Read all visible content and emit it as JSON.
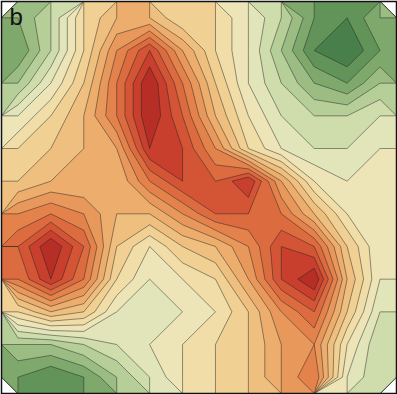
{
  "chart_data": {
    "type": "contour",
    "title": "b",
    "tick_labels": false,
    "values": [
      [
        2,
        3,
        5,
        6,
        6,
        5,
        5,
        4,
        3,
        1.5,
        1,
        2
      ],
      [
        1.5,
        3,
        5,
        7,
        8.5,
        6.5,
        5,
        4,
        2.5,
        1,
        0.5,
        1.5
      ],
      [
        2.5,
        4,
        5.5,
        7.5,
        9.5,
        7.5,
        5.5,
        4,
        3,
        2,
        1.5,
        2.5
      ],
      [
        4,
        5,
        6,
        7.5,
        9.5,
        8,
        6,
        4.5,
        3.5,
        3,
        3,
        3.5
      ],
      [
        5,
        5.5,
        6,
        6.5,
        9,
        8.5,
        7,
        5,
        4,
        3.5,
        3.5,
        4
      ],
      [
        5.5,
        6,
        6,
        6,
        7.5,
        8.5,
        8,
        9,
        6.5,
        4.5,
        4,
        4
      ],
      [
        7,
        7.5,
        7,
        6,
        6,
        7,
        8,
        8,
        7.5,
        6,
        4.5,
        4
      ],
      [
        8,
        9.5,
        8,
        5.5,
        4.5,
        5.5,
        6,
        7,
        8.5,
        8,
        5.5,
        4
      ],
      [
        7.5,
        9,
        7.5,
        5,
        4,
        4.5,
        5,
        6.5,
        8.5,
        9.5,
        6,
        4
      ],
      [
        5,
        6,
        5.5,
        4,
        3.5,
        4,
        4.5,
        5.5,
        7,
        8,
        5.5,
        3.5
      ],
      [
        2.5,
        2.5,
        3,
        3.5,
        4,
        4.5,
        5,
        5.5,
        6.5,
        7,
        4.5,
        3
      ],
      [
        1.5,
        1,
        1.5,
        2.5,
        3.5,
        4.5,
        5,
        5.5,
        6.5,
        7.5,
        4,
        3
      ]
    ],
    "zlim": [
      0,
      10
    ],
    "levels": [
      0,
      0.5,
      1,
      1.5,
      2,
      2.5,
      3,
      3.5,
      4,
      4.5,
      5,
      5.5,
      6,
      6.5,
      7,
      7.5,
      8,
      8.5,
      9,
      9.5,
      10
    ],
    "colors": [
      "#2f6b3c",
      "#6e9e5e",
      "#b9d19a",
      "#f3f0cc",
      "#f1d390",
      "#eca463",
      "#df6c3c",
      "#c6302a",
      "#8a1616"
    ]
  }
}
